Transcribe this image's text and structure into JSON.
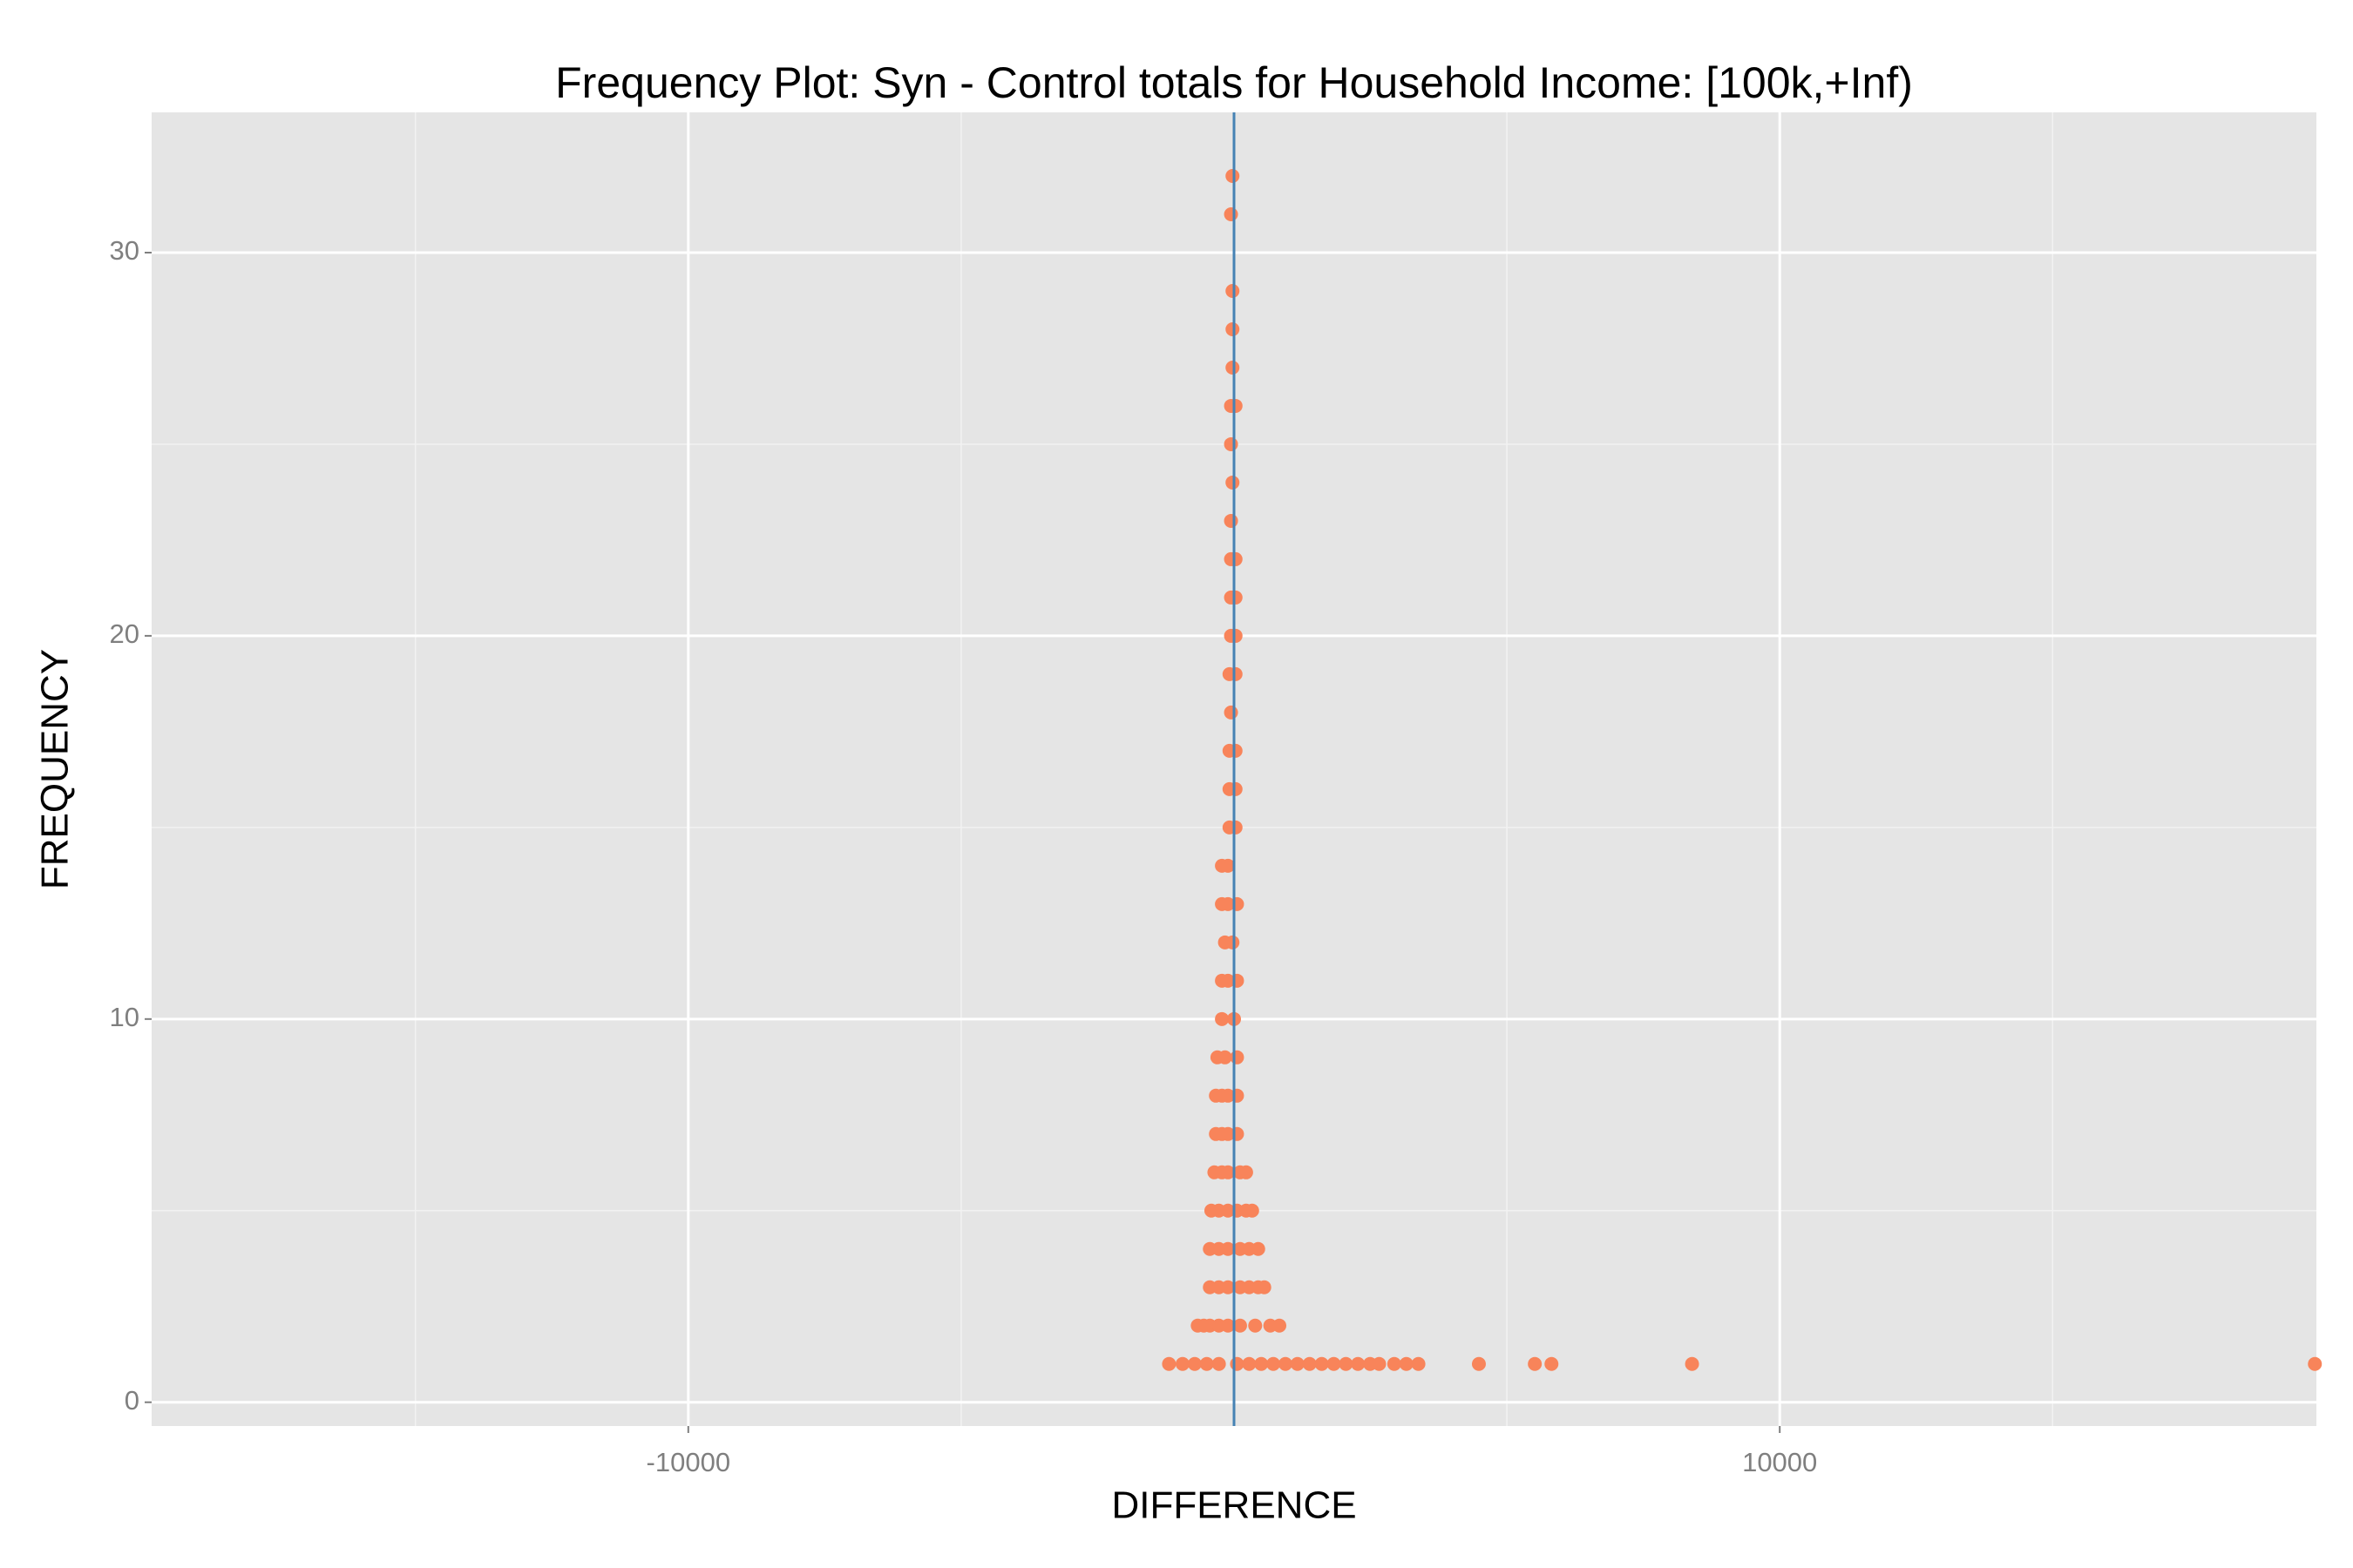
{
  "chart_data": {
    "type": "scatter",
    "title": "Frequency Plot: Syn - Control totals for Household Income: [100k,+Inf)",
    "x_label": "DIFFERENCE",
    "y_label": "FREQUENCY",
    "series": [
      {
        "color": "#f8845a",
        "x": [
          -28,
          -55,
          -28,
          -28,
          -28,
          -55,
          28,
          -55,
          -28,
          -55,
          -55,
          28,
          -55,
          28,
          -55,
          28,
          -83,
          28,
          -55,
          -83,
          28,
          -83,
          28,
          -83,
          28,
          -222,
          -111,
          -222,
          -111,
          55,
          -166,
          -28,
          -222,
          -111,
          55,
          -222,
          0,
          -305,
          -166,
          55,
          -332,
          -222,
          -111,
          55,
          -332,
          -222,
          -111,
          55,
          -360,
          -222,
          -111,
          111,
          222,
          -416,
          -277,
          -111,
          55,
          222,
          332,
          -443,
          -277,
          -111,
          111,
          277,
          443,
          -443,
          -277,
          -111,
          111,
          277,
          443,
          554,
          -665,
          -554,
          -443,
          -277,
          -111,
          111,
          388,
          665,
          831,
          -1191,
          -942,
          -720,
          -499,
          -277,
          55,
          277,
          499,
          720,
          942,
          1163,
          1385,
          1607,
          1828,
          2050,
          2271,
          2493,
          2659,
          2936,
          3158,
          3379,
          4487,
          5512,
          5817,
          8393,
          19806
        ],
        "values": [
          32,
          31,
          29,
          28,
          27,
          26,
          26,
          25,
          24,
          23,
          22,
          22,
          21,
          21,
          20,
          20,
          19,
          19,
          18,
          17,
          17,
          16,
          16,
          15,
          15,
          14,
          14,
          13,
          13,
          13,
          12,
          12,
          11,
          11,
          11,
          10,
          10,
          9,
          9,
          9,
          8,
          8,
          8,
          8,
          7,
          7,
          7,
          7,
          6,
          6,
          6,
          6,
          6,
          5,
          5,
          5,
          5,
          5,
          5,
          4,
          4,
          4,
          4,
          4,
          4,
          3,
          3,
          3,
          3,
          3,
          3,
          3,
          2,
          2,
          2,
          2,
          2,
          2,
          2,
          2,
          2,
          1,
          1,
          1,
          1,
          1,
          1,
          1,
          1,
          1,
          1,
          1,
          1,
          1,
          1,
          1,
          1,
          1,
          1,
          1,
          1,
          1,
          1,
          1,
          1,
          1,
          1
        ]
      }
    ],
    "vline": {
      "value": 0,
      "color": "#4682b4"
    },
    "xlim": [
      -19834,
      19834
    ],
    "ylim": [
      -0.62,
      33.66
    ],
    "xticks": [
      -10000,
      10000
    ],
    "yticks": [
      0,
      10,
      20,
      30
    ],
    "x_minor_grid": [
      -15000,
      -5000,
      5000,
      15000
    ],
    "y_minor_grid": [
      5,
      15,
      25
    ],
    "grid": true,
    "background": "#e5e5e5"
  }
}
